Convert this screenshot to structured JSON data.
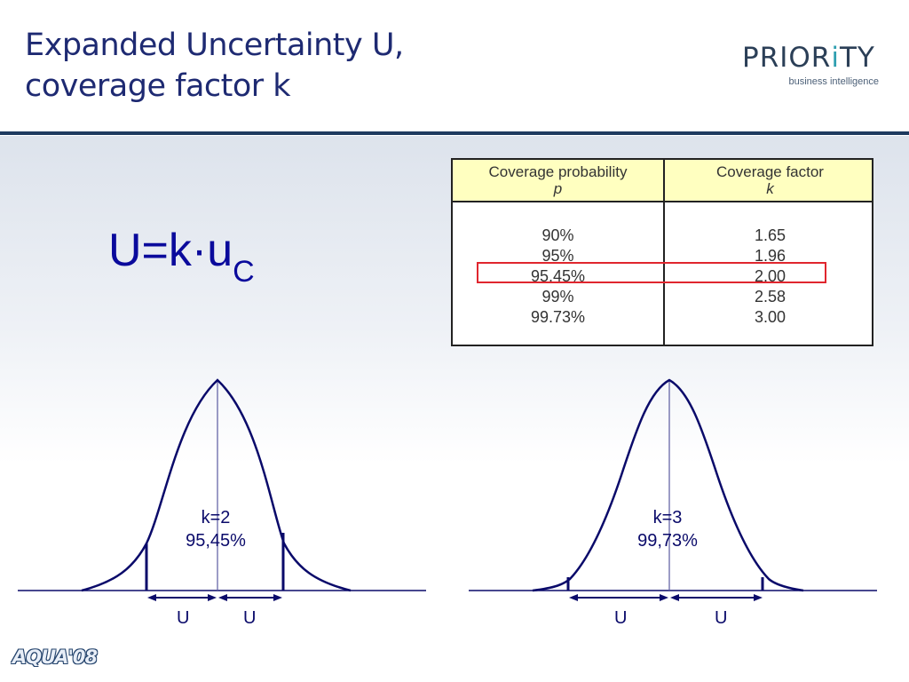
{
  "slide": {
    "title_line1": "Expanded Uncertainty U,",
    "title_line2": "coverage factor k"
  },
  "logo": {
    "word_part1": "PRIOR",
    "word_accent": "i",
    "word_part2": "TY",
    "subtitle": "business intelligence"
  },
  "formula": {
    "main": "U=k·u",
    "subscript": "C"
  },
  "table": {
    "header_p": "Coverage probability",
    "header_p_symbol": "p",
    "header_k": "Coverage factor",
    "header_k_symbol": "k",
    "rows": [
      {
        "p": "90%",
        "k": "1.65"
      },
      {
        "p": "95%",
        "k": "1.96"
      },
      {
        "p": "95.45%",
        "k": "2.00"
      },
      {
        "p": "99%",
        "k": "2.58"
      },
      {
        "p": "99.73%",
        "k": "3.00"
      }
    ],
    "highlighted_row": 2,
    "highlight_color": "#e0262e",
    "header_color": "#ffffc0"
  },
  "curves": [
    {
      "k_label": "k=2",
      "coverage_label": "95,45%",
      "u_left": "U",
      "u_right": "U",
      "k": 2
    },
    {
      "k_label": "k=3",
      "coverage_label": "99,73%",
      "u_left": "U",
      "u_right": "U",
      "k": 3
    }
  ],
  "footer": {
    "brand": "AQUA'08"
  },
  "colors": {
    "title": "#1e2a72",
    "formula": "#0a0a9c",
    "curve": "#0a0a6a"
  }
}
